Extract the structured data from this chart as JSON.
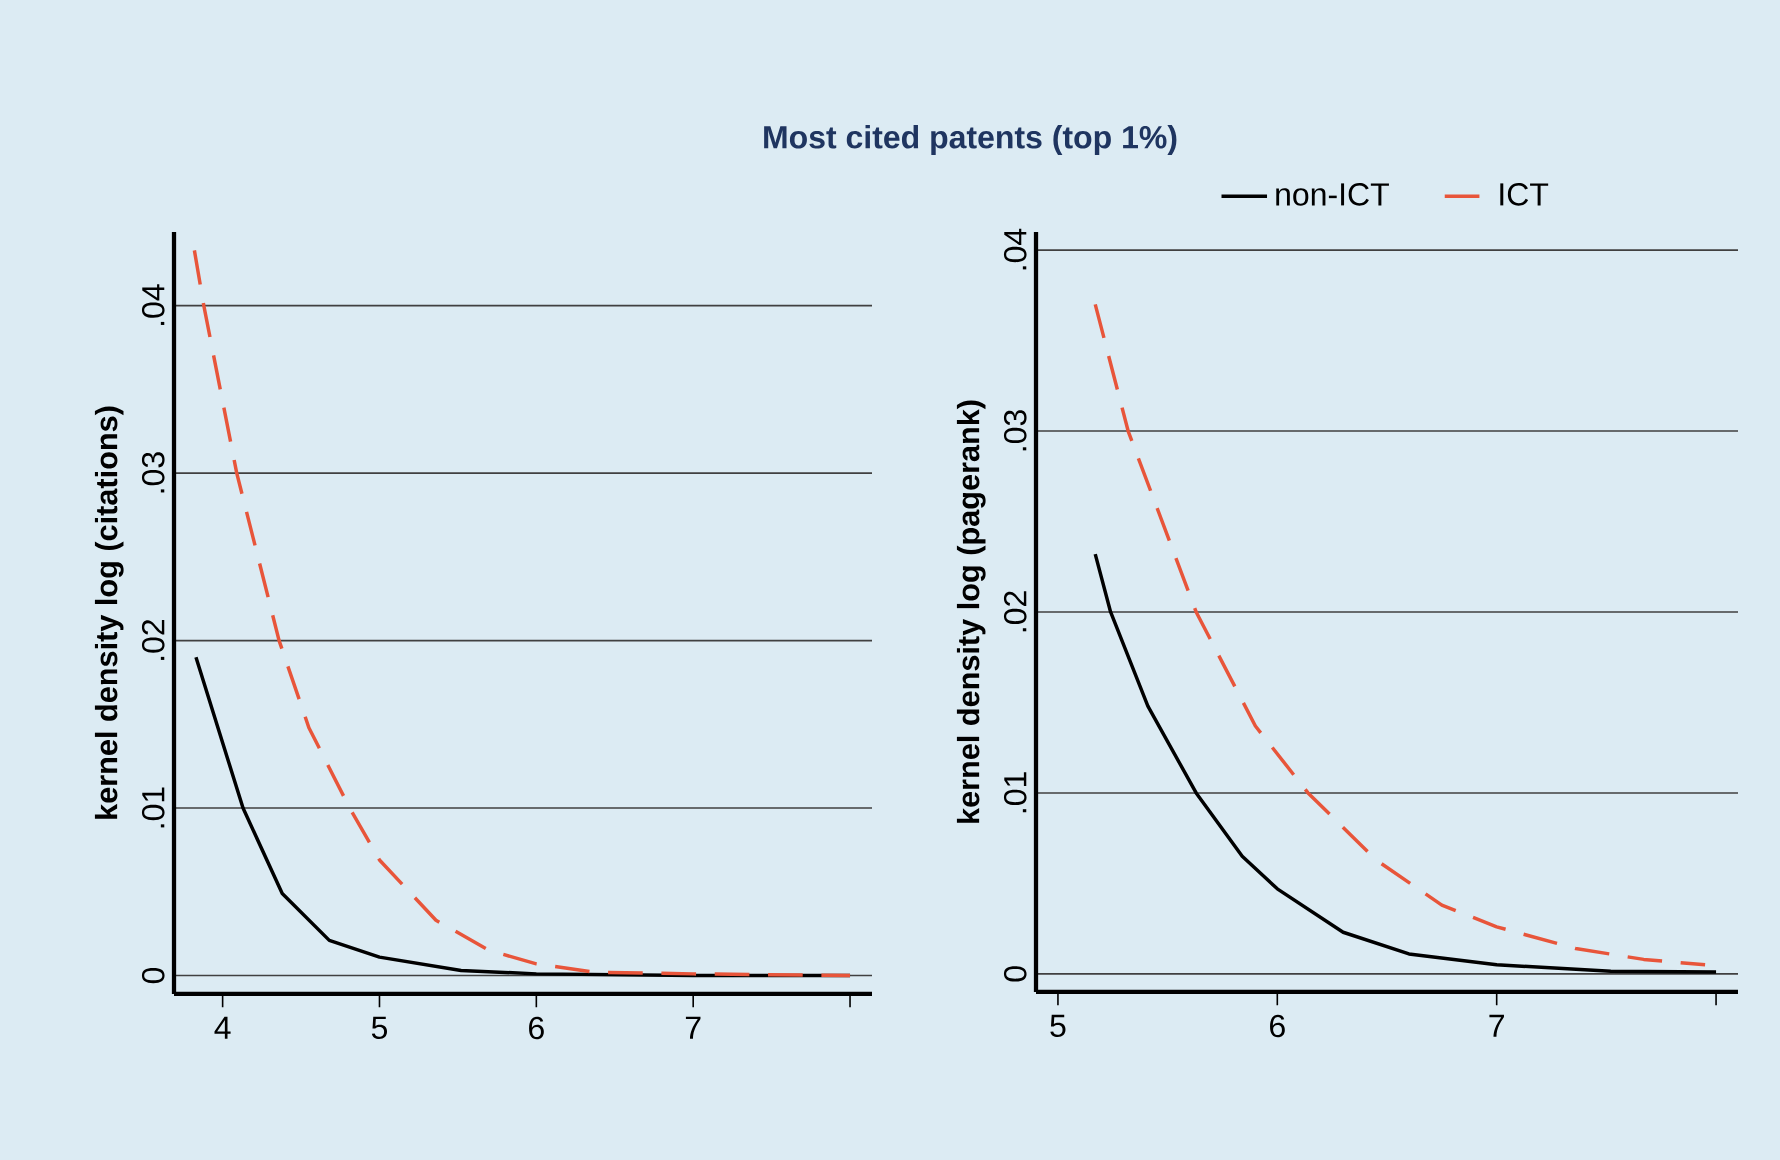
{
  "chart_data": [
    {
      "type": "line",
      "title": "Most cited patents (top 1%)",
      "ylabel": "kernel density log (citations)",
      "xlim": [
        3.69,
        8.14
      ],
      "ylim": [
        -0.0011,
        0.0444
      ],
      "xticks": [
        4,
        5,
        6,
        7,
        {
          "value": 8,
          "label": null
        }
      ],
      "yticks": [
        {
          "value": 0,
          "label": "0"
        },
        {
          "value": 0.01,
          "label": ".01"
        },
        {
          "value": 0.02,
          "label": ".02"
        },
        {
          "value": 0.03,
          "label": ".03"
        },
        {
          "value": 0.04,
          "label": ".04"
        }
      ],
      "grid": "y",
      "series": [
        {
          "color": "#000000",
          "line_style": "solid",
          "x": [
            3.83,
            4.13,
            4.38,
            4.68,
            5,
            5.52,
            6,
            7,
            8
          ],
          "values": [
            0.019,
            0.01,
            0.0049,
            0.0021,
            0.0011,
            0.0003,
            0.0001,
            0,
            0
          ]
        },
        {
          "color": "#e8553a",
          "line_style": "dashed",
          "x": [
            3.82,
            3.88,
            4.09,
            4.36,
            4.55,
            4.81,
            5,
            5.36,
            5.7,
            6,
            6.37,
            7,
            8
          ],
          "values": [
            0.0433,
            0.04,
            0.03,
            0.02,
            0.0148,
            0.01,
            0.0069,
            0.0033,
            0.0015,
            0.0007,
            0.0002,
            0.0001,
            0
          ]
        }
      ]
    },
    {
      "type": "line",
      "ylabel": "kernel density log (pagerank)",
      "xlim": [
        4.9,
        8.1
      ],
      "ylim": [
        -0.001,
        0.041
      ],
      "xticks": [
        5,
        6,
        7,
        {
          "value": 8,
          "label": null
        }
      ],
      "yticks": [
        {
          "value": 0,
          "label": "0"
        },
        {
          "value": 0.01,
          "label": ".01"
        },
        {
          "value": 0.02,
          "label": ".02"
        },
        {
          "value": 0.03,
          "label": ".03"
        },
        {
          "value": 0.04,
          "label": ".04"
        }
      ],
      "grid": "y",
      "legend": "top",
      "series": [
        {
          "name": "non-ICT",
          "color": "#000000",
          "line_style": "solid",
          "x": [
            5.17,
            5.24,
            5.41,
            5.63,
            5.84,
            6,
            6.3,
            6.6,
            7,
            7.52,
            8
          ],
          "values": [
            0.0232,
            0.02,
            0.0148,
            0.01,
            0.0065,
            0.0047,
            0.0023,
            0.0011,
            0.0005,
            0.00015,
            0.0001
          ]
        },
        {
          "name": "ICT",
          "color": "#e8553a",
          "line_style": "dashed",
          "x": [
            5.17,
            5.32,
            5.63,
            5.9,
            6.14,
            6.45,
            6.75,
            7,
            7.36,
            7.67,
            7.95
          ],
          "values": [
            0.037,
            0.03,
            0.02,
            0.0137,
            0.01,
            0.0063,
            0.0038,
            0.0026,
            0.0014,
            0.0008,
            0.0005
          ]
        }
      ]
    }
  ]
}
